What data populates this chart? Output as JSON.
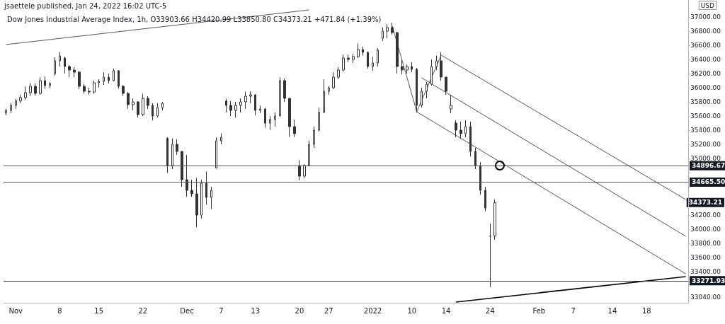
{
  "chart_data": {
    "type": "candlestick",
    "title": "Dow Jones Industrial Average Index, 1h, O33903.66 H34420.99 L33850.80 C34373.21 +471.84 (+1.39%)",
    "ylabel": "USD",
    "color": "#333333",
    "categories": [
      null,
      null,
      "Nov",
      null,
      null,
      null,
      null,
      null,
      null,
      null,
      null,
      "8",
      null,
      null,
      null,
      null,
      null,
      null,
      null,
      "15",
      null,
      null,
      null,
      null,
      null,
      null,
      null,
      null,
      "22",
      null,
      null,
      null,
      null,
      null,
      null,
      null,
      null,
      "Dec",
      null,
      null,
      null,
      null,
      null,
      null,
      "7",
      null,
      null,
      null,
      null,
      null,
      null,
      "13",
      null,
      null,
      null,
      null,
      null,
      null,
      null,
      null,
      "20",
      null,
      null,
      null,
      null,
      null,
      "27",
      null,
      null,
      null,
      null,
      null,
      null,
      null,
      null,
      "2022",
      null,
      null,
      null,
      null,
      null,
      null,
      null,
      "10",
      null,
      null,
      null,
      null,
      null,
      null,
      "14",
      null,
      null,
      null,
      null,
      null,
      null,
      null,
      null,
      "24",
      null,
      null,
      null,
      null,
      null,
      null,
      null,
      null,
      null,
      "Feb",
      null,
      null,
      null,
      null,
      null,
      null,
      "7",
      null,
      null,
      null,
      null,
      null,
      null,
      null,
      "14",
      null,
      null,
      null,
      null,
      null,
      null,
      "18",
      null,
      null,
      null,
      null,
      null,
      null,
      null,
      null
    ],
    "ohlc": [
      [
        35640,
        35700,
        35609,
        35680
      ],
      [
        35680,
        35780,
        35640,
        35750
      ],
      [
        35750,
        35843,
        35700,
        35813
      ],
      [
        35813,
        35900,
        35782,
        35860
      ],
      [
        35860,
        36017,
        35830,
        35930
      ],
      [
        35930,
        36068,
        35884,
        36020
      ],
      [
        36020,
        36060,
        35890,
        35920
      ],
      [
        35920,
        36149,
        35900,
        36100
      ],
      [
        36100,
        36160,
        35986,
        36030
      ],
      [
        36030,
        36080,
        35990,
        36060
      ],
      [
        36200,
        36430,
        36170,
        36380
      ],
      [
        36380,
        36506,
        36300,
        36450
      ],
      [
        36420,
        36440,
        36200,
        36300
      ],
      [
        36300,
        36322,
        36149,
        36250
      ],
      [
        36250,
        36290,
        36150,
        36220
      ],
      [
        36220,
        36240,
        35980,
        36020
      ],
      [
        36020,
        36050,
        35915,
        35950
      ],
      [
        35950,
        36000,
        35900,
        35940
      ],
      [
        35940,
        36100,
        35915,
        36070
      ],
      [
        36070,
        36120,
        36000,
        36090
      ],
      [
        36090,
        36220,
        36040,
        36150
      ],
      [
        36150,
        36200,
        36060,
        36100
      ],
      [
        36100,
        36271,
        36090,
        36240
      ],
      [
        36240,
        36250,
        35990,
        36020
      ],
      [
        36020,
        36040,
        35884,
        35920
      ],
      [
        35920,
        35940,
        35700,
        35760
      ],
      [
        35760,
        35850,
        35680,
        35800
      ],
      [
        35800,
        35810,
        35578,
        35620
      ],
      [
        35620,
        35915,
        35600,
        35850
      ],
      [
        35850,
        35880,
        35700,
        35750
      ],
      [
        35750,
        35780,
        35538,
        35600
      ],
      [
        35600,
        35780,
        35580,
        35720
      ],
      [
        35720,
        35800,
        35680,
        35780
      ],
      [
        35283,
        35300,
        34794,
        34900
      ],
      [
        34900,
        35283,
        34850,
        35200
      ],
      [
        35200,
        35273,
        35050,
        35100
      ],
      [
        35100,
        35100,
        34600,
        34700
      ],
      [
        34700,
        35050,
        34458,
        34550
      ],
      [
        34550,
        34700,
        34460,
        34500
      ],
      [
        34500,
        34723,
        34030,
        34200
      ],
      [
        34200,
        34700,
        34150,
        34650
      ],
      [
        34650,
        34814,
        34350,
        34450
      ],
      [
        34450,
        34600,
        34284,
        34550
      ],
      [
        34865,
        35300,
        34865,
        35250
      ],
      [
        35250,
        35354,
        35200,
        35300
      ],
      [
        35813,
        35843,
        35650,
        35750
      ],
      [
        35750,
        35813,
        35600,
        35680
      ],
      [
        35680,
        35800,
        35578,
        35750
      ],
      [
        35750,
        35850,
        35650,
        35800
      ],
      [
        35800,
        35945,
        35700,
        35880
      ],
      [
        35880,
        35950,
        35780,
        35900
      ],
      [
        35900,
        35910,
        35609,
        35680
      ],
      [
        35680,
        35750,
        35640,
        35700
      ],
      [
        35700,
        35720,
        35436,
        35500
      ],
      [
        35500,
        35600,
        35405,
        35550
      ],
      [
        35550,
        35650,
        35450,
        35600
      ],
      [
        35600,
        36149,
        35600,
        36100
      ],
      [
        36100,
        36130,
        35800,
        35850
      ],
      [
        35850,
        35850,
        35303,
        35450
      ],
      [
        35450,
        35550,
        35303,
        35350
      ],
      [
        34900,
        34977,
        34692,
        34750
      ],
      [
        34750,
        34920,
        34720,
        34900
      ],
      [
        34900,
        35250,
        34900,
        35200
      ],
      [
        35200,
        35450,
        35150,
        35400
      ],
      [
        35400,
        35720,
        35380,
        35650
      ],
      [
        35650,
        36120,
        35650,
        35950
      ],
      [
        35950,
        36020,
        35900,
        36000
      ],
      [
        36000,
        36220,
        35980,
        36150
      ],
      [
        36150,
        36290,
        36120,
        36250
      ],
      [
        36250,
        36470,
        36230,
        36420
      ],
      [
        36420,
        36470,
        36360,
        36400
      ],
      [
        36400,
        36480,
        36350,
        36440
      ],
      [
        36440,
        36628,
        36420,
        36540
      ],
      [
        36540,
        36580,
        36455,
        36500
      ],
      [
        36500,
        36510,
        36271,
        36300
      ],
      [
        36300,
        36440,
        36241,
        36350
      ],
      [
        36350,
        36560,
        36300,
        36530
      ],
      [
        36700,
        36850,
        36660,
        36800
      ],
      [
        36800,
        36900,
        36700,
        36850
      ],
      [
        36850,
        36920,
        36750,
        36780
      ],
      [
        36780,
        36790,
        36200,
        36300
      ],
      [
        36300,
        36400,
        36190,
        36250
      ],
      [
        36250,
        36330,
        36200,
        36300
      ],
      [
        36300,
        36360,
        36220,
        36260
      ],
      [
        36260,
        36280,
        35650,
        35750
      ],
      [
        35750,
        36000,
        35720,
        35950
      ],
      [
        35950,
        36080,
        35850,
        36050
      ],
      [
        36050,
        36400,
        36030,
        36300
      ],
      [
        36300,
        36455,
        36250,
        36380
      ],
      [
        36380,
        36500,
        36100,
        36150
      ],
      [
        36150,
        36150,
        35900,
        35950
      ],
      [
        35700,
        35900,
        35640,
        35750
      ],
      [
        35500,
        35540,
        35300,
        35400
      ],
      [
        35400,
        35520,
        35280,
        35350
      ],
      [
        35350,
        35540,
        35300,
        35450
      ],
      [
        35450,
        35520,
        35028,
        35100
      ],
      [
        35100,
        35150,
        34850,
        34900
      ],
      [
        34900,
        34950,
        34488,
        34550
      ],
      [
        34550,
        34600,
        34254,
        34300
      ],
      [
        33900,
        34080,
        33182,
        33900
      ],
      [
        33903.66,
        34420.99,
        33850.8,
        34373.21
      ],
      null,
      null,
      null,
      null,
      null,
      null,
      null,
      null,
      null,
      null,
      null,
      null,
      null,
      null,
      null,
      null,
      null,
      null,
      null,
      null,
      null,
      null,
      null,
      null,
      null,
      null,
      null,
      null,
      null,
      null,
      null,
      null,
      null,
      null,
      null,
      null,
      null,
      null,
      null
    ],
    "series": [
      {
        "type": "line",
        "color": "#555555",
        "values": [
          36610,
          null,
          null,
          null,
          null,
          null,
          null,
          null,
          null,
          null,
          null,
          null,
          null,
          null,
          null,
          null,
          null,
          null,
          null,
          null,
          null,
          null,
          null,
          null,
          null,
          null,
          null,
          null,
          null,
          null,
          null,
          null,
          null,
          null,
          null,
          null,
          null,
          null,
          null,
          null,
          null,
          null,
          null,
          null,
          null,
          null,
          null,
          null,
          null,
          null,
          null,
          null,
          null,
          null,
          null,
          null,
          null,
          null,
          null,
          null,
          null,
          null,
          37100,
          null,
          null,
          null,
          null,
          null,
          null,
          null,
          null,
          null,
          null,
          null,
          null,
          null,
          null,
          null,
          null,
          null,
          null,
          null,
          null,
          null,
          null,
          null,
          null,
          null,
          null,
          null,
          null,
          null,
          null,
          null,
          null,
          null,
          null,
          null,
          null,
          null,
          null,
          null,
          null,
          null,
          null,
          null,
          null,
          null,
          null,
          null,
          null,
          null,
          null,
          null,
          null,
          null,
          null,
          null,
          null,
          null,
          null,
          null,
          null,
          null,
          null,
          null,
          null,
          null,
          null,
          null,
          null,
          null,
          null,
          null,
          null,
          null,
          null,
          null,
          null,
          null
        ]
      },
      {
        "type": "line",
        "color": "#000000",
        "values": [
          null,
          null,
          null,
          null,
          null,
          null,
          null,
          null,
          null,
          null,
          null,
          null,
          null,
          null,
          null,
          null,
          null,
          null,
          null,
          null,
          null,
          null,
          null,
          null,
          null,
          null,
          null,
          null,
          null,
          null,
          null,
          null,
          null,
          null,
          null,
          null,
          null,
          null,
          null,
          null,
          null,
          null,
          null,
          null,
          null,
          null,
          null,
          null,
          null,
          null,
          null,
          null,
          null,
          null,
          null,
          null,
          null,
          null,
          null,
          null,
          null,
          null,
          null,
          null,
          null,
          null,
          null,
          null,
          null,
          null,
          null,
          null,
          null,
          null,
          null,
          null,
          null,
          null,
          null,
          null,
          null,
          null,
          null,
          null,
          null,
          null,
          null,
          null,
          null,
          null,
          null,
          null,
          32970,
          null,
          null,
          null,
          null,
          null,
          null,
          null,
          null,
          null,
          null,
          null,
          null,
          null,
          null,
          null,
          null,
          null,
          null,
          null,
          null,
          null,
          null,
          null,
          null,
          null,
          null,
          null,
          null,
          null,
          null,
          null,
          null,
          null,
          null,
          null,
          null,
          null,
          null,
          null,
          null,
          null,
          null,
          null,
          null,
          null,
          null,
          33330
        ]
      },
      {
        "type": "line",
        "color": "#555555",
        "values": [
          null,
          null,
          null,
          null,
          null,
          null,
          null,
          null,
          null,
          null,
          null,
          null,
          null,
          null,
          null,
          null,
          null,
          null,
          null,
          null,
          null,
          null,
          null,
          null,
          null,
          null,
          null,
          null,
          null,
          null,
          null,
          null,
          null,
          null,
          null,
          null,
          null,
          null,
          null,
          null,
          null,
          null,
          null,
          null,
          null,
          null,
          null,
          null,
          null,
          null,
          null,
          null,
          null,
          null,
          null,
          null,
          null,
          null,
          null,
          null,
          null,
          null,
          null,
          null,
          null,
          null,
          null,
          null,
          null,
          null,
          null,
          null,
          null,
          null,
          null,
          null,
          null,
          null,
          null,
          36870,
          null,
          null,
          null,
          null,
          35660,
          null,
          null,
          null,
          null,
          null,
          null,
          null,
          null,
          null,
          null,
          null,
          null,
          null,
          null,
          null,
          null,
          null,
          null,
          null,
          null,
          null,
          null,
          null,
          null,
          null,
          null,
          null,
          null,
          null,
          null,
          null,
          null,
          null,
          null,
          null,
          null,
          null,
          null,
          null,
          null,
          null,
          null,
          null,
          null,
          null,
          null,
          null,
          null,
          null,
          null,
          null,
          null,
          null,
          null,
          null
        ]
      },
      {
        "type": "line",
        "color": "#555555",
        "values": [
          null,
          null,
          null,
          null,
          null,
          null,
          null,
          null,
          null,
          null,
          null,
          null,
          null,
          null,
          null,
          null,
          null,
          null,
          null,
          null,
          null,
          null,
          null,
          null,
          null,
          null,
          null,
          null,
          null,
          null,
          null,
          null,
          null,
          null,
          null,
          null,
          null,
          null,
          null,
          null,
          null,
          null,
          null,
          null,
          null,
          null,
          null,
          null,
          null,
          null,
          null,
          null,
          null,
          null,
          null,
          null,
          null,
          null,
          null,
          null,
          null,
          null,
          null,
          null,
          null,
          null,
          null,
          null,
          null,
          null,
          null,
          null,
          null,
          null,
          null,
          null,
          null,
          null,
          null,
          null,
          null,
          null,
          null,
          null,
          35660,
          null,
          null,
          null,
          null,
          36460,
          null,
          null,
          null,
          null,
          null,
          null,
          null,
          null,
          null,
          null,
          null,
          null,
          null,
          null,
          null,
          null,
          null,
          null,
          null,
          null,
          null,
          null,
          null,
          null,
          null,
          null,
          null,
          null,
          null,
          null,
          null,
          null,
          null,
          null,
          null,
          null,
          null,
          null,
          null,
          null,
          null,
          null,
          null,
          null,
          null,
          null,
          null,
          null,
          null,
          null
        ]
      },
      {
        "type": "line",
        "color": "#555555",
        "values": [
          null,
          null,
          null,
          null,
          null,
          null,
          null,
          null,
          null,
          null,
          null,
          null,
          null,
          null,
          null,
          null,
          null,
          null,
          null,
          null,
          null,
          null,
          null,
          null,
          null,
          null,
          null,
          null,
          null,
          null,
          null,
          null,
          null,
          null,
          null,
          null,
          null,
          null,
          null,
          null,
          null,
          null,
          null,
          null,
          null,
          null,
          null,
          null,
          null,
          null,
          null,
          null,
          null,
          null,
          null,
          null,
          null,
          null,
          null,
          null,
          null,
          null,
          null,
          null,
          null,
          null,
          null,
          null,
          null,
          null,
          null,
          null,
          null,
          null,
          null,
          null,
          null,
          null,
          null,
          null,
          null,
          null,
          null,
          null,
          null,
          36140,
          null,
          null,
          null,
          null,
          null,
          null,
          null,
          null,
          null,
          null,
          null,
          null,
          null,
          null,
          null,
          null,
          null,
          null,
          null,
          null,
          null,
          null,
          null,
          null,
          null,
          null,
          null,
          null,
          null,
          null,
          null,
          null,
          null,
          null,
          null,
          null,
          null,
          null,
          null,
          null,
          null,
          null,
          null,
          null,
          null,
          null,
          null,
          null,
          null,
          null,
          null,
          null,
          null,
          33900
        ]
      },
      {
        "type": "line",
        "color": "#555555",
        "values": [
          null,
          null,
          null,
          null,
          null,
          null,
          null,
          null,
          null,
          null,
          null,
          null,
          null,
          null,
          null,
          null,
          null,
          null,
          null,
          null,
          null,
          null,
          null,
          null,
          null,
          null,
          null,
          null,
          null,
          null,
          null,
          null,
          null,
          null,
          null,
          null,
          null,
          null,
          null,
          null,
          null,
          null,
          null,
          null,
          null,
          null,
          null,
          null,
          null,
          null,
          null,
          null,
          null,
          null,
          null,
          null,
          null,
          null,
          null,
          null,
          null,
          null,
          null,
          null,
          null,
          null,
          null,
          null,
          null,
          null,
          null,
          null,
          null,
          null,
          null,
          null,
          null,
          null,
          null,
          null,
          null,
          null,
          null,
          null,
          null,
          null,
          null,
          null,
          null,
          36460,
          null,
          null,
          null,
          null,
          null,
          null,
          null,
          null,
          null,
          null,
          null,
          null,
          null,
          null,
          null,
          null,
          null,
          null,
          null,
          null,
          null,
          null,
          null,
          null,
          null,
          null,
          null,
          null,
          null,
          null,
          null,
          null,
          null,
          null,
          null,
          null,
          null,
          null,
          null,
          null,
          null,
          null,
          null,
          null,
          null,
          null,
          null,
          null,
          null,
          34420
        ]
      },
      {
        "type": "line",
        "color": "#555555",
        "values": [
          null,
          null,
          null,
          null,
          null,
          null,
          null,
          null,
          null,
          null,
          null,
          null,
          null,
          null,
          null,
          null,
          null,
          null,
          null,
          null,
          null,
          null,
          null,
          null,
          null,
          null,
          null,
          null,
          null,
          null,
          null,
          null,
          null,
          null,
          null,
          null,
          null,
          null,
          null,
          null,
          null,
          null,
          null,
          null,
          null,
          null,
          null,
          null,
          null,
          null,
          null,
          null,
          null,
          null,
          null,
          null,
          null,
          null,
          null,
          null,
          null,
          null,
          null,
          null,
          null,
          null,
          null,
          null,
          null,
          null,
          null,
          null,
          null,
          null,
          null,
          null,
          null,
          null,
          null,
          null,
          null,
          null,
          null,
          null,
          35660,
          null,
          null,
          null,
          null,
          null,
          null,
          null,
          null,
          null,
          null,
          null,
          null,
          null,
          null,
          null,
          null,
          null,
          null,
          null,
          null,
          null,
          null,
          null,
          null,
          null,
          null,
          null,
          null,
          null,
          null,
          null,
          null,
          null,
          null,
          null,
          null,
          null,
          null,
          null,
          null,
          null,
          null,
          null,
          null,
          null,
          null,
          null,
          null,
          null,
          null,
          null,
          null,
          null,
          null,
          33370
        ]
      }
    ],
    "ylim": [
      32960,
      37240
    ],
    "yticks": [
      {
        "value": 33040,
        "label": "33040.00"
      },
      {
        "value": 33220,
        "label": null
      },
      {
        "value": 33400,
        "label": "33400.00"
      },
      {
        "value": 33600,
        "label": "33600.00"
      },
      {
        "value": 33800,
        "label": "33800.00"
      },
      {
        "value": 34000,
        "label": "34000.00"
      },
      {
        "value": 34200,
        "label": "34200.00"
      },
      {
        "value": 34400,
        "label": null
      },
      {
        "value": 34600,
        "label": null
      },
      {
        "value": 34800,
        "label": null
      },
      {
        "value": 35000,
        "label": "35000.00"
      },
      {
        "value": 35200,
        "label": "35200.00"
      },
      {
        "value": 35400,
        "label": "35400.00"
      },
      {
        "value": 35600,
        "label": "35600.00"
      },
      {
        "value": 35800,
        "label": "35800.00"
      },
      {
        "value": 36000,
        "label": "36000.00"
      },
      {
        "value": 36200,
        "label": "36200.00"
      },
      {
        "value": 36400,
        "label": "36400.00"
      },
      {
        "value": 36600,
        "label": "36600.00"
      },
      {
        "value": 36800,
        "label": "36800.00"
      },
      {
        "value": 37000,
        "label": "37000.00"
      }
    ],
    "ref_lines": [
      {
        "axis": "y",
        "value": 34896.67,
        "label": "34896.67",
        "color": "#555555"
      },
      {
        "axis": "y",
        "value": 34665.5,
        "label": "34665.50",
        "color": "#555555"
      },
      {
        "axis": "y",
        "value": 33271.93,
        "label": "33271.93",
        "color": "#333333"
      }
    ],
    "annotations": [
      "jsaettele published, Jan 24, 2022 16:02 UTC-5",
      "34373.21"
    ],
    "grid": false
  }
}
